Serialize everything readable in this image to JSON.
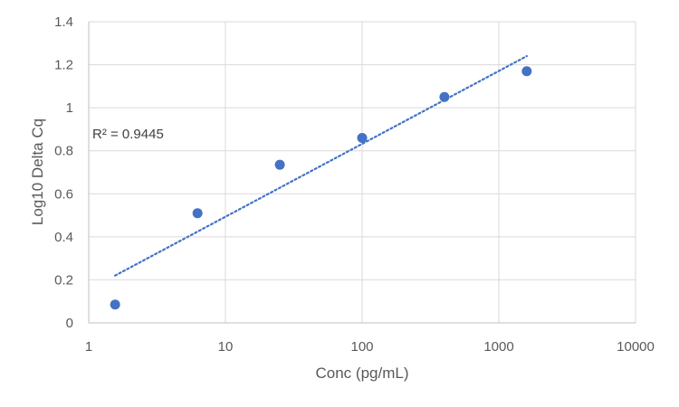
{
  "chart_data": {
    "type": "scatter",
    "title": "",
    "xlabel": "Conc (pg/mL)",
    "ylabel": "Log10 Delta Cq",
    "x_scale": "log10",
    "xlim": [
      1,
      10000
    ],
    "ylim": [
      0,
      1.4
    ],
    "x_ticks": [
      1,
      10,
      100,
      1000,
      10000
    ],
    "x_tick_labels": [
      "1",
      "10",
      "100",
      "1000",
      "10000"
    ],
    "y_ticks": [
      0,
      0.2,
      0.4,
      0.6,
      0.8,
      1,
      1.2,
      1.4
    ],
    "y_tick_labels": [
      "0",
      "0.2",
      "0.4",
      "0.6",
      "0.8",
      "1",
      "1.2",
      "1.4"
    ],
    "grid": true,
    "legend": "none",
    "series": [
      {
        "name": "Log10 Delta Cq",
        "color": "#4472c4",
        "x": [
          1.56,
          6.25,
          25,
          100,
          400,
          1600
        ],
        "y": [
          0.085,
          0.51,
          0.735,
          0.86,
          1.05,
          1.17
        ]
      }
    ],
    "trendline": {
      "type": "logarithmic",
      "style": "dotted",
      "color": "#4472c4",
      "x_start": 1.56,
      "x_end": 1600,
      "y_start": 0.22,
      "y_end": 1.24
    },
    "annotation": {
      "text": "R² = 0.9445"
    }
  }
}
